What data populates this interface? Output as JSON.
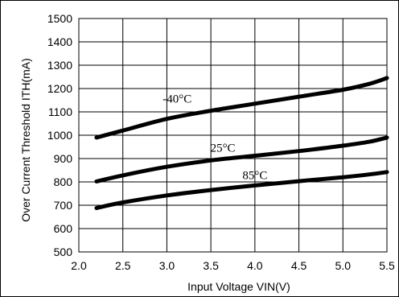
{
  "chart_data": {
    "type": "line",
    "title": "",
    "xlabel": "Input Voltage VIN(V)",
    "ylabel": "Over Current Threshold ITH(mA)",
    "xlim": [
      2.0,
      5.5
    ],
    "ylim": [
      500,
      1500
    ],
    "x_ticks": [
      "2.0",
      "2.5",
      "3.0",
      "3.5",
      "4.0",
      "4.5",
      "5.0",
      "5.5"
    ],
    "y_ticks": [
      "500",
      "600",
      "700",
      "800",
      "900",
      "1000",
      "1100",
      "1200",
      "1300",
      "1400",
      "1500"
    ],
    "grid": true,
    "series": [
      {
        "name": "-40°C",
        "x": [
          2.2,
          2.5,
          3.0,
          3.5,
          4.0,
          4.5,
          5.0,
          5.3,
          5.5
        ],
        "values": [
          990,
          1020,
          1070,
          1105,
          1135,
          1165,
          1195,
          1220,
          1245
        ]
      },
      {
        "name": "25°C",
        "x": [
          2.2,
          2.5,
          3.0,
          3.5,
          4.0,
          4.5,
          5.0,
          5.3,
          5.5
        ],
        "values": [
          802,
          828,
          865,
          892,
          912,
          932,
          955,
          972,
          990
        ]
      },
      {
        "name": "85°C",
        "x": [
          2.2,
          2.5,
          3.0,
          3.5,
          4.0,
          4.5,
          5.0,
          5.3,
          5.5
        ],
        "values": [
          688,
          712,
          742,
          765,
          785,
          803,
          820,
          832,
          842
        ]
      }
    ]
  }
}
